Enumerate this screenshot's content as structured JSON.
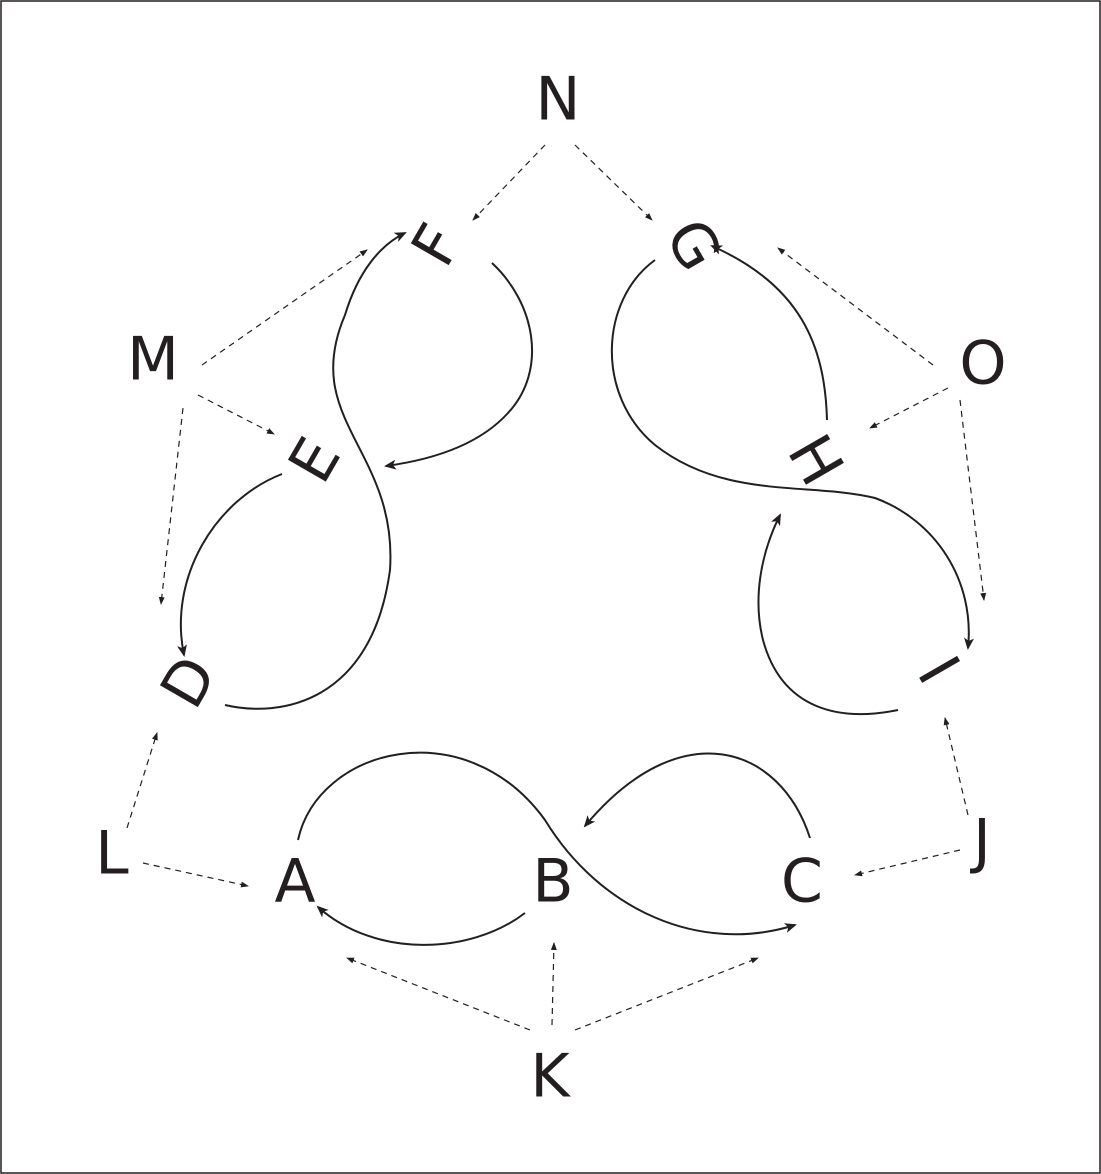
{
  "diagram": {
    "nodes": [
      {
        "id": "A",
        "label": "A"
      },
      {
        "id": "B",
        "label": "B"
      },
      {
        "id": "C",
        "label": "C"
      },
      {
        "id": "D",
        "label": "D"
      },
      {
        "id": "E",
        "label": "E"
      },
      {
        "id": "F",
        "label": "F"
      },
      {
        "id": "G",
        "label": "G"
      },
      {
        "id": "H",
        "label": "H"
      },
      {
        "id": "I",
        "label": "I"
      },
      {
        "id": "J",
        "label": "J"
      },
      {
        "id": "K",
        "label": "K"
      },
      {
        "id": "L",
        "label": "L"
      },
      {
        "id": "M",
        "label": "M"
      },
      {
        "id": "N",
        "label": "N"
      },
      {
        "id": "O",
        "label": "O"
      }
    ],
    "solid_edges": [
      {
        "from": "A",
        "to": "C"
      },
      {
        "from": "B",
        "to": "A"
      },
      {
        "from": "C",
        "to": "B"
      },
      {
        "from": "D",
        "to": "F"
      },
      {
        "from": "E",
        "to": "D"
      },
      {
        "from": "F",
        "to": "E"
      },
      {
        "from": "G",
        "to": "I"
      },
      {
        "from": "H",
        "to": "G"
      },
      {
        "from": "I",
        "to": "H"
      }
    ],
    "dashed_edges": [
      {
        "from": "K",
        "to": "A"
      },
      {
        "from": "K",
        "to": "B"
      },
      {
        "from": "K",
        "to": "C"
      },
      {
        "from": "L",
        "to": "A"
      },
      {
        "from": "L",
        "to": "D"
      },
      {
        "from": "J",
        "to": "C"
      },
      {
        "from": "J",
        "to": "I"
      },
      {
        "from": "M",
        "to": "F"
      },
      {
        "from": "M",
        "to": "E"
      },
      {
        "from": "M",
        "to": "D"
      },
      {
        "from": "N",
        "to": "F"
      },
      {
        "from": "N",
        "to": "G"
      },
      {
        "from": "O",
        "to": "G"
      },
      {
        "from": "O",
        "to": "H"
      },
      {
        "from": "O",
        "to": "I"
      }
    ]
  }
}
